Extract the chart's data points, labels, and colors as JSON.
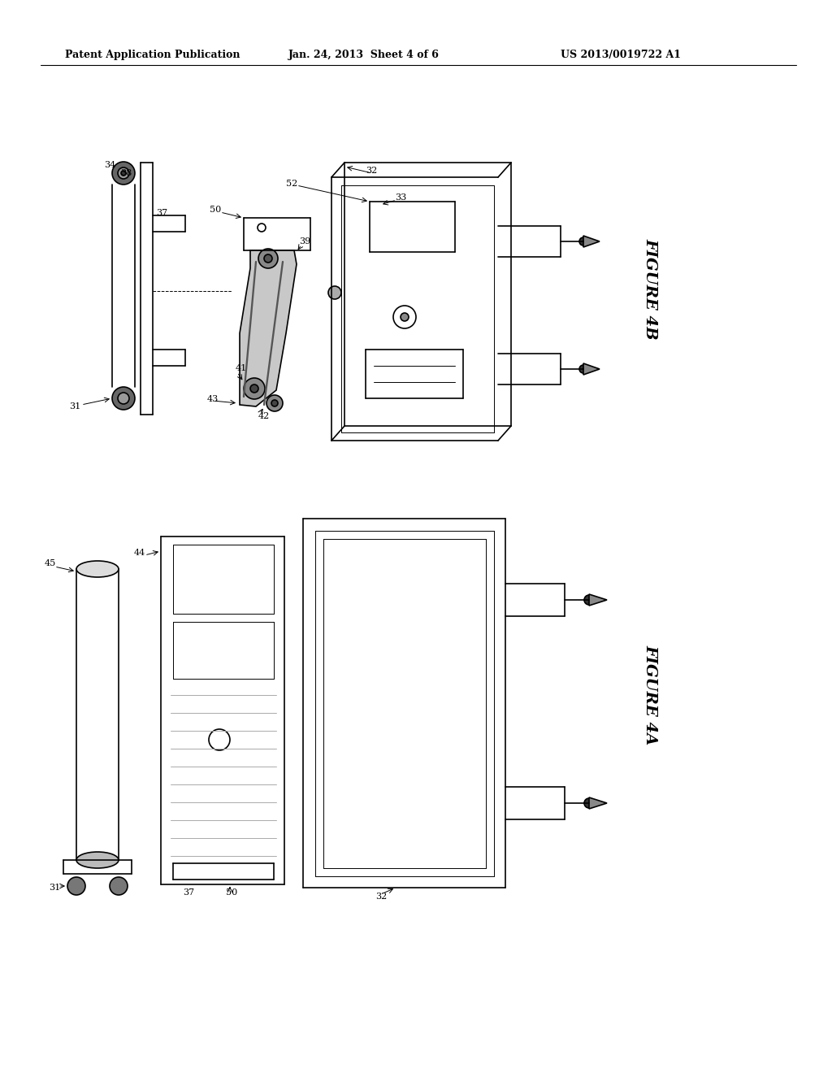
{
  "background_color": "#ffffff",
  "header_left": "Patent Application Publication",
  "header_center": "Jan. 24, 2013  Sheet 4 of 6",
  "header_right": "US 2013/0019722 A1",
  "figure_4b_label": "FIGURE 4B",
  "figure_4a_label": "FIGURE 4A",
  "line_color": "#000000",
  "line_width": 1.2,
  "thin_line": 0.7,
  "thick_line": 2.0
}
